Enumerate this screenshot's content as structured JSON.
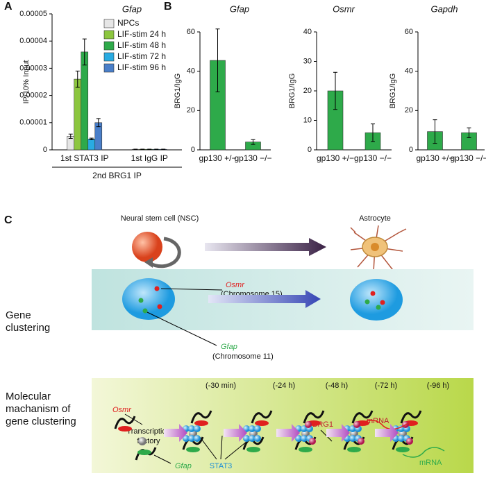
{
  "panel_labels": [
    "A",
    "B",
    "C"
  ],
  "chart_data": [
    {
      "type": "bar",
      "title": "Gfap",
      "ylabel": "IP/10% Input",
      "group_label": "2nd BRG1 IP",
      "categories": [
        "1st STAT3 IP",
        "1st IgG IP"
      ],
      "series": [
        {
          "name": "NPCs",
          "color": "#e6e6e6",
          "values": [
            5e-06,
            2e-07
          ],
          "errors": [
            8e-07,
            5e-08
          ]
        },
        {
          "name": "LIF-stim 24 h",
          "color": "#8cc63f",
          "values": [
            2.6e-05,
            2e-07
          ],
          "errors": [
            3e-06,
            5e-08
          ]
        },
        {
          "name": "LIF-stim 48 h",
          "color": "#2eaa4a",
          "values": [
            3.6e-05,
            2e-07
          ],
          "errors": [
            4.8e-06,
            5e-08
          ]
        },
        {
          "name": "LIF-stim 72 h",
          "color": "#29abe2",
          "values": [
            4e-06,
            2e-07
          ],
          "errors": [
            3e-07,
            5e-08
          ]
        },
        {
          "name": "LIF-stim 96 h",
          "color": "#4a7fc9",
          "values": [
            1e-05,
            2e-07
          ],
          "errors": [
            1.5e-06,
            5e-08
          ]
        }
      ],
      "ylim": [
        0,
        5e-05
      ],
      "yticks": [
        0,
        1e-05,
        2e-05,
        3e-05,
        4e-05,
        5e-05
      ],
      "legend": "upper right"
    },
    {
      "type": "bar",
      "title": "Gfap",
      "ylabel": "BRG1/IgG",
      "categories": [
        "gp130 +/−",
        "gp130 −/−"
      ],
      "values": [
        45.5,
        4
      ],
      "errors": [
        16,
        1.2
      ],
      "color": "#2eaa4a",
      "ylim": [
        0,
        60
      ],
      "yticks": [
        0,
        20,
        40,
        60
      ]
    },
    {
      "type": "bar",
      "title": "Osmr",
      "ylabel": "BRG1/IgG",
      "categories": [
        "gp130 +/−",
        "gp130 −/−"
      ],
      "values": [
        20,
        5.8
      ],
      "errors": [
        6.3,
        3
      ],
      "color": "#2eaa4a",
      "ylim": [
        0,
        40
      ],
      "yticks": [
        0,
        10,
        20,
        30,
        40
      ]
    },
    {
      "type": "bar",
      "title": "Gapdh",
      "ylabel": "BRG1/IgG",
      "categories": [
        "gp130 +/−",
        "gp130 −/−"
      ],
      "values": [
        9.3,
        8.7
      ],
      "errors": [
        6,
        2.5
      ],
      "color": "#2eaa4a",
      "ylim": [
        0,
        60
      ],
      "yticks": [
        0,
        20,
        40,
        60
      ]
    }
  ],
  "diagram": {
    "nsc": "Neural stem cell (NSC)",
    "astrocyte": "Astrocyte",
    "gene_clustering": [
      "Gene",
      "clustering"
    ],
    "osmr": "Osmr",
    "chr15": "(Chromosome 15)",
    "gfap": "Gfap",
    "chr11": "(Chromosome 11)",
    "mechanism": [
      "Molecular",
      "machanism of",
      "gene clustering"
    ],
    "times": [
      "(-30 min)",
      "(-24 h)",
      "(-48 h)",
      "(-72 h)",
      "(-96 h)"
    ],
    "osmr2": "Osmr",
    "factory": [
      "Transcription",
      "factory"
    ],
    "gfap2": "Gfap",
    "stat3": "STAT3",
    "brg1": "BRG1",
    "mrna_red": "mRNA",
    "mrna_green": "mRNA"
  }
}
